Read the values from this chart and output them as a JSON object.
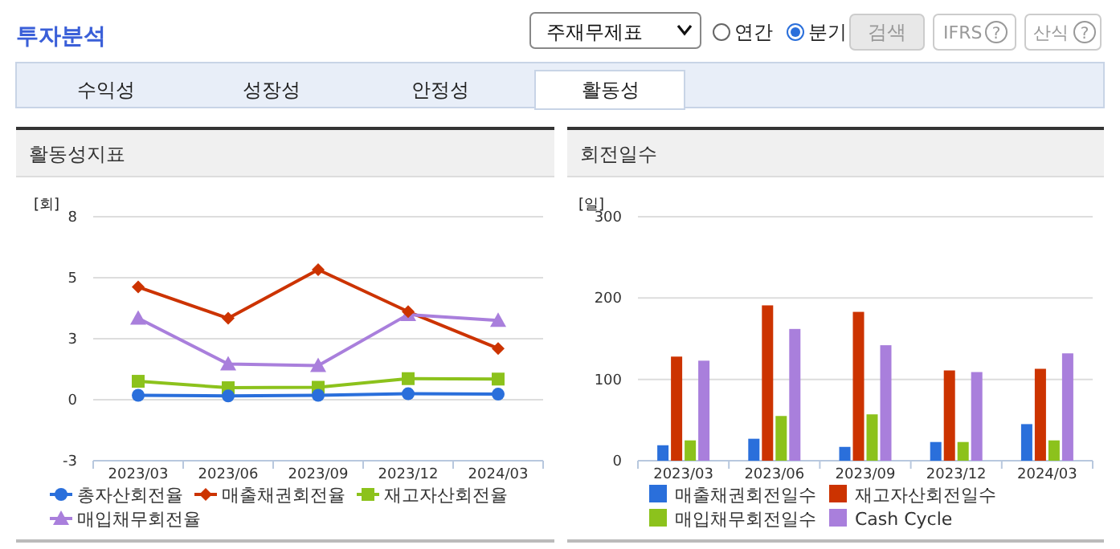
{
  "chart_data": [
    {
      "type": "other",
      "title": "투자분석",
      "annotations": [
        "주재무제표",
        "연간",
        "분기",
        "검색",
        "IFRS",
        "?",
        "산식",
        "?",
        "수익성",
        "성장성",
        "안정성",
        "활동성"
      ]
    },
    {
      "type": "line",
      "title": "활동성지표",
      "ylabel": "[회]",
      "categories": [
        "2023/03",
        "2023/06",
        "2023/09",
        "2023/12",
        "2024/03"
      ],
      "ylim": [
        -3,
        8
      ],
      "yticks": [
        -3,
        {
          "value": -0.25,
          "label": "0"
        },
        {
          "value": 2.5,
          "label": "3"
        },
        {
          "value": 5.25,
          "label": "5"
        },
        8
      ],
      "grid": "y",
      "legend": "bottom",
      "series": [
        {
          "name": "총자산회전율",
          "color": "#2a6fdb",
          "marker": "circle",
          "values": [
            -0.05,
            -0.08,
            -0.05,
            0.02,
            0.0
          ]
        },
        {
          "name": "매출채권회전율",
          "color": "#cc3300",
          "marker": "diamond",
          "values": [
            4.83,
            3.42,
            5.61,
            3.72,
            2.06
          ]
        },
        {
          "name": "재고자산회전율",
          "color": "#8cc21c",
          "marker": "square",
          "values": [
            0.58,
            0.29,
            0.31,
            0.7,
            0.68
          ]
        },
        {
          "name": "매입채무회전율",
          "color": "#a97fdc",
          "marker": "triangle",
          "values": [
            3.42,
            1.36,
            1.29,
            3.59,
            3.32
          ]
        }
      ]
    },
    {
      "type": "bar",
      "title": "회전일수",
      "ylabel": "[일]",
      "categories": [
        "2023/03",
        "2023/06",
        "2023/09",
        "2023/12",
        "2024/03"
      ],
      "ylim": [
        0,
        300
      ],
      "yticks": [
        0,
        100,
        200,
        300
      ],
      "grid": "y",
      "legend": "bottom",
      "series": [
        {
          "name": "매출채권회전일수",
          "color": "#2a6fdb",
          "values": [
            19,
            27,
            17,
            23,
            45
          ]
        },
        {
          "name": "재고자산회전일수",
          "color": "#cc3300",
          "values": [
            128,
            191,
            183,
            111,
            113
          ]
        },
        {
          "name": "매입채무회전일수",
          "color": "#8cc21c",
          "values": [
            25,
            55,
            57,
            23,
            25
          ]
        },
        {
          "name": "Cash Cycle",
          "color": "#a97fdc",
          "values": [
            123,
            162,
            142,
            109,
            132
          ]
        }
      ]
    }
  ]
}
